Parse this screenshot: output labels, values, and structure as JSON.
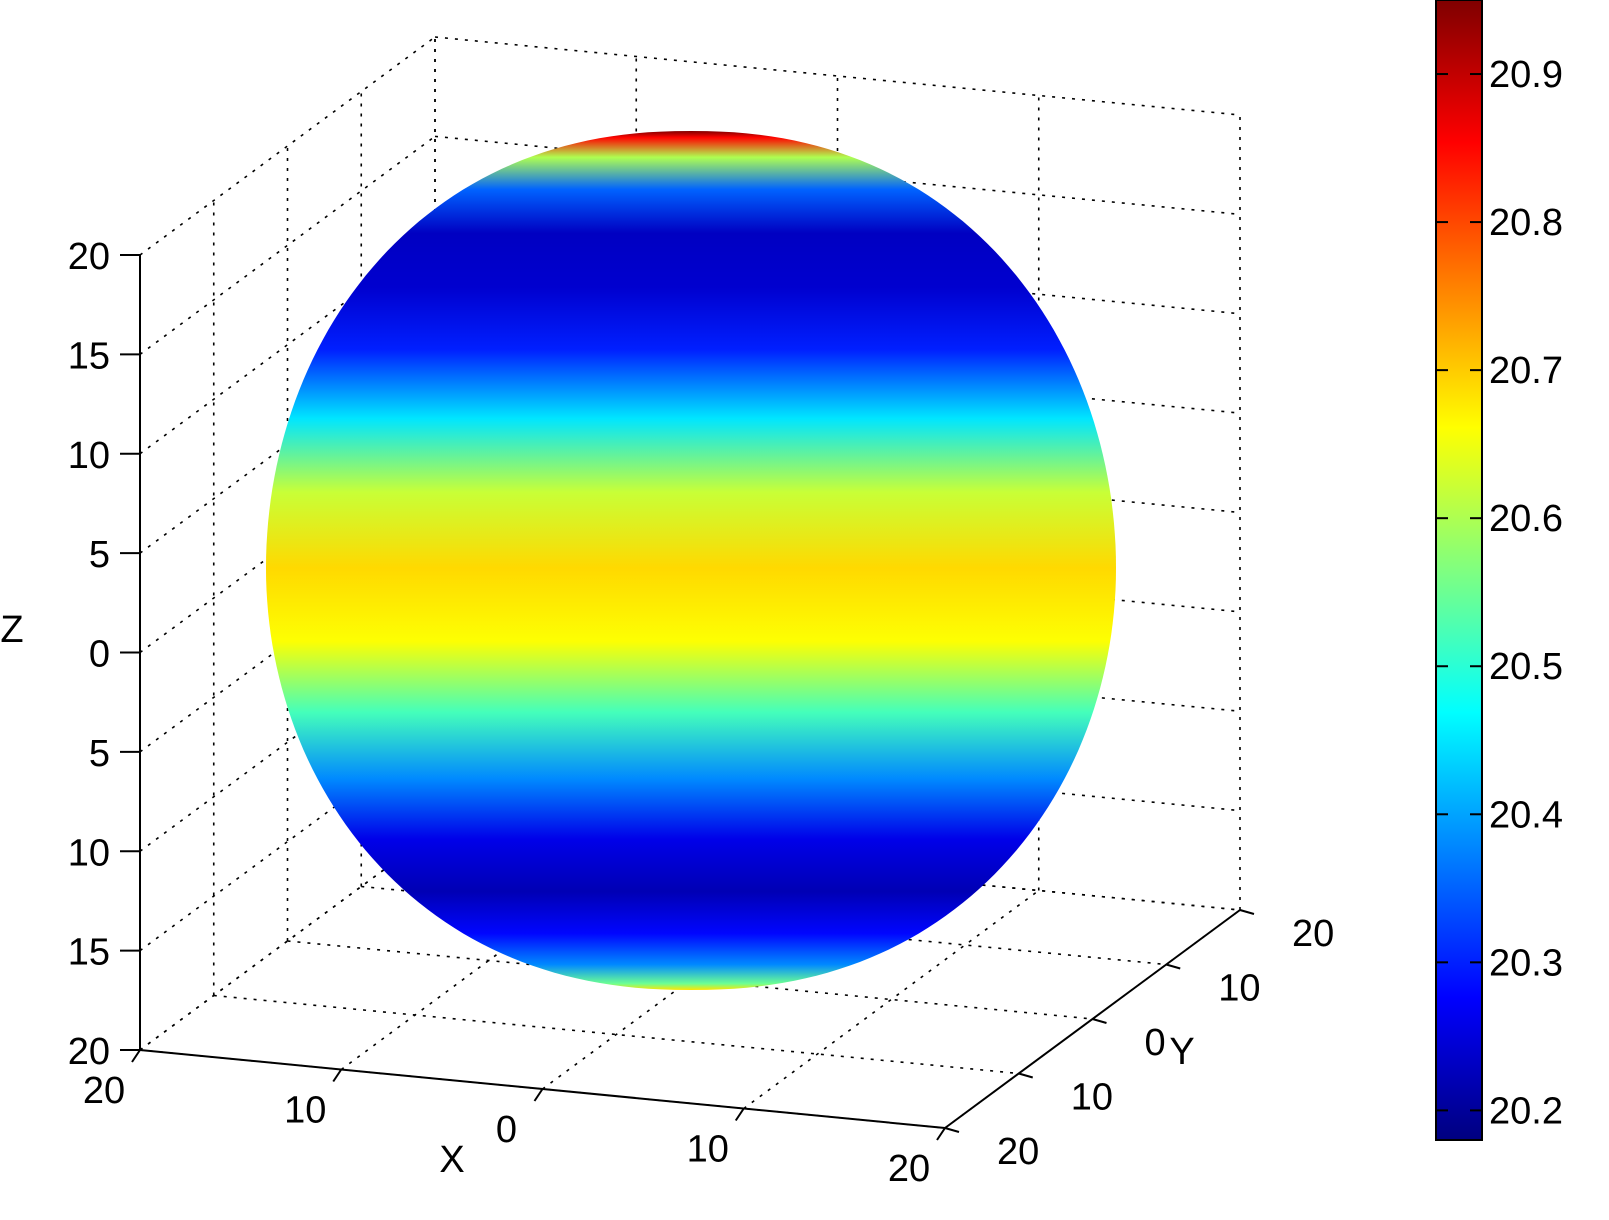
{
  "chart_data": {
    "type": "surface",
    "surface_shape": "sphere",
    "xlabel": "X",
    "ylabel": "Y",
    "zlabel": "Z",
    "x_ticks": [
      "20",
      "10",
      "0",
      "10",
      "20"
    ],
    "y_ticks": [
      "20",
      "10",
      "0",
      "10",
      "20"
    ],
    "z_ticks": [
      "20",
      "15",
      "10",
      "5",
      "0",
      "5",
      "10",
      "15",
      "20"
    ],
    "grid": true,
    "colormap": "jet",
    "colorbar": {
      "location": "right",
      "range": [
        20.18,
        20.95
      ],
      "ticks": [
        "20.2",
        "20.3",
        "20.4",
        "20.5",
        "20.6",
        "20.7",
        "20.8",
        "20.9"
      ]
    },
    "latitude_profile": {
      "latitude_deg": [
        90,
        80,
        70,
        60,
        50,
        40,
        30,
        20,
        10,
        0,
        -10,
        -20,
        -30,
        -40,
        -50,
        -60,
        -70,
        -80,
        -90
      ],
      "value": [
        20.95,
        20.85,
        20.6,
        20.35,
        20.23,
        20.24,
        20.3,
        20.45,
        20.62,
        20.69,
        20.66,
        20.52,
        20.38,
        20.26,
        20.22,
        20.28,
        20.38,
        20.55,
        20.68
      ]
    }
  }
}
